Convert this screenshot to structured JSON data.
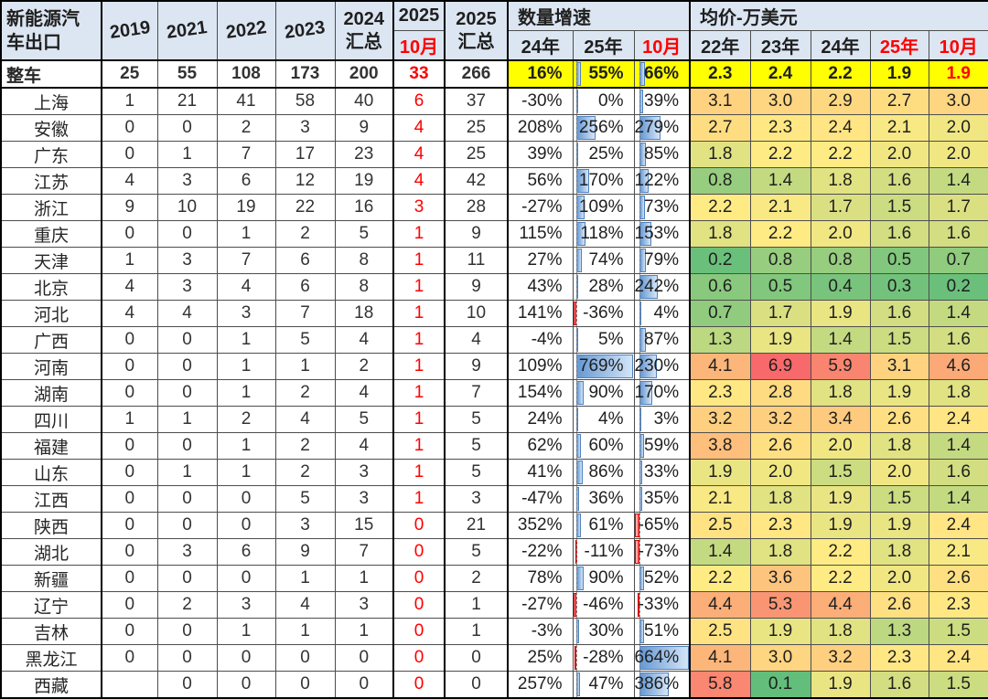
{
  "table": {
    "corner_title": "新能源汽\n车出口",
    "col_headers": {
      "y2019": "2019",
      "y2021": "2021",
      "y2022": "2022",
      "y2023": "2023",
      "y2024_total": "2024\n汇总",
      "y2025_top": "2025",
      "y2025_m10": "10月",
      "y2025_total": "2025\n汇总"
    },
    "groups": {
      "growth": {
        "label": "数量增速",
        "sub": [
          "24年",
          "25年",
          "10月"
        ]
      },
      "price": {
        "label": "均价-万美元",
        "sub": [
          "22年",
          "23年",
          "24年",
          "25年",
          "10月"
        ]
      }
    },
    "rows": [
      {
        "name": "整车",
        "total": true,
        "qty": [
          "25",
          "55",
          "108",
          "173",
          "200",
          "33",
          "266"
        ],
        "growth": [
          16,
          55,
          66
        ],
        "price": [
          2.3,
          2.4,
          2.2,
          1.9,
          1.9
        ]
      },
      {
        "name": "上海",
        "qty": [
          "1",
          "21",
          "41",
          "58",
          "40",
          "6",
          "37"
        ],
        "growth": [
          -30,
          0,
          39
        ],
        "price": [
          3.1,
          3.0,
          2.9,
          2.7,
          3.0
        ]
      },
      {
        "name": "安徽",
        "qty": [
          "0",
          "0",
          "2",
          "3",
          "9",
          "4",
          "25"
        ],
        "growth": [
          208,
          256,
          279
        ],
        "price": [
          2.7,
          2.3,
          2.4,
          2.1,
          2.0
        ]
      },
      {
        "name": "广东",
        "qty": [
          "0",
          "1",
          "7",
          "17",
          "23",
          "4",
          "25"
        ],
        "growth": [
          39,
          25,
          85
        ],
        "price": [
          1.8,
          2.2,
          2.2,
          2.0,
          2.0
        ]
      },
      {
        "name": "江苏",
        "qty": [
          "4",
          "3",
          "6",
          "12",
          "19",
          "4",
          "42"
        ],
        "growth": [
          56,
          170,
          122
        ],
        "price": [
          0.8,
          1.4,
          1.8,
          1.6,
          1.4
        ]
      },
      {
        "name": "浙江",
        "qty": [
          "9",
          "10",
          "19",
          "22",
          "16",
          "3",
          "28"
        ],
        "growth": [
          -27,
          109,
          73
        ],
        "price": [
          2.2,
          2.1,
          1.7,
          1.5,
          1.7
        ]
      },
      {
        "name": "重庆",
        "qty": [
          "0",
          "0",
          "1",
          "2",
          "5",
          "1",
          "9"
        ],
        "growth": [
          115,
          118,
          153
        ],
        "price": [
          1.8,
          2.2,
          2.0,
          1.6,
          1.6
        ]
      },
      {
        "name": "天津",
        "qty": [
          "1",
          "3",
          "7",
          "6",
          "8",
          "1",
          "11"
        ],
        "growth": [
          27,
          74,
          79
        ],
        "price": [
          0.2,
          0.8,
          0.8,
          0.5,
          0.7
        ]
      },
      {
        "name": "北京",
        "qty": [
          "4",
          "3",
          "4",
          "6",
          "8",
          "1",
          "9"
        ],
        "growth": [
          43,
          28,
          242
        ],
        "price": [
          0.6,
          0.5,
          0.4,
          0.3,
          0.2
        ]
      },
      {
        "name": "河北",
        "qty": [
          "4",
          "4",
          "3",
          "7",
          "18",
          "1",
          "10"
        ],
        "growth": [
          141,
          -36,
          4
        ],
        "price": [
          0.7,
          1.7,
          1.9,
          1.6,
          1.4
        ]
      },
      {
        "name": "广西",
        "qty": [
          "0",
          "0",
          "1",
          "5",
          "4",
          "1",
          "4"
        ],
        "growth": [
          -4,
          5,
          87
        ],
        "price": [
          1.3,
          1.9,
          1.4,
          1.5,
          1.6
        ]
      },
      {
        "name": "河南",
        "qty": [
          "0",
          "0",
          "1",
          "1",
          "2",
          "1",
          "9"
        ],
        "growth": [
          109,
          769,
          230
        ],
        "price": [
          4.1,
          6.9,
          5.9,
          3.1,
          4.6
        ]
      },
      {
        "name": "湖南",
        "qty": [
          "0",
          "0",
          "1",
          "2",
          "4",
          "1",
          "7"
        ],
        "growth": [
          154,
          90,
          170
        ],
        "price": [
          2.3,
          2.8,
          1.8,
          1.9,
          1.8
        ]
      },
      {
        "name": "四川",
        "qty": [
          "1",
          "1",
          "2",
          "4",
          "5",
          "1",
          "5"
        ],
        "growth": [
          24,
          4,
          3
        ],
        "price": [
          3.2,
          3.2,
          3.4,
          2.6,
          2.4
        ]
      },
      {
        "name": "福建",
        "qty": [
          "0",
          "0",
          "1",
          "2",
          "4",
          "1",
          "5"
        ],
        "growth": [
          62,
          60,
          59
        ],
        "price": [
          3.8,
          2.6,
          2.0,
          1.8,
          1.4
        ]
      },
      {
        "name": "山东",
        "qty": [
          "0",
          "1",
          "1",
          "2",
          "3",
          "1",
          "5"
        ],
        "growth": [
          41,
          86,
          33
        ],
        "price": [
          1.9,
          2.0,
          1.5,
          2.0,
          1.6
        ]
      },
      {
        "name": "江西",
        "qty": [
          "0",
          "0",
          "0",
          "5",
          "3",
          "1",
          "3"
        ],
        "growth": [
          -47,
          36,
          35
        ],
        "price": [
          2.1,
          1.8,
          1.9,
          1.5,
          1.4
        ]
      },
      {
        "name": "陕西",
        "qty": [
          "0",
          "0",
          "0",
          "3",
          "15",
          "0",
          "21"
        ],
        "growth": [
          352,
          61,
          -65
        ],
        "price": [
          2.5,
          2.3,
          1.9,
          1.9,
          2.4
        ]
      },
      {
        "name": "湖北",
        "qty": [
          "0",
          "3",
          "6",
          "9",
          "7",
          "0",
          "5"
        ],
        "growth": [
          -22,
          -11,
          -73
        ],
        "price": [
          1.4,
          1.8,
          2.2,
          1.8,
          2.1
        ]
      },
      {
        "name": "新疆",
        "qty": [
          "0",
          "0",
          "0",
          "1",
          "1",
          "0",
          "2"
        ],
        "growth": [
          78,
          90,
          52
        ],
        "price": [
          2.2,
          3.6,
          2.2,
          2.0,
          2.6
        ]
      },
      {
        "name": "辽宁",
        "qty": [
          "0",
          "2",
          "3",
          "4",
          "3",
          "0",
          "1"
        ],
        "growth": [
          -27,
          -46,
          -33
        ],
        "price": [
          4.4,
          5.3,
          4.4,
          2.6,
          2.3
        ]
      },
      {
        "name": "吉林",
        "qty": [
          "0",
          "0",
          "1",
          "1",
          "1",
          "0",
          "1"
        ],
        "growth": [
          -3,
          30,
          51
        ],
        "price": [
          2.5,
          1.9,
          1.8,
          1.3,
          1.5
        ]
      },
      {
        "name": "黑龙江",
        "qty": [
          "0",
          "0",
          "0",
          "0",
          "0",
          "0",
          "0"
        ],
        "growth": [
          25,
          -28,
          664
        ],
        "price": [
          4.1,
          3.0,
          3.2,
          2.3,
          2.4
        ]
      },
      {
        "name": "西藏",
        "qty": [
          "",
          "0",
          "0",
          "0",
          "0",
          "0",
          "0"
        ],
        "growth": [
          257,
          47,
          386
        ],
        "price": [
          5.8,
          0.1,
          1.9,
          1.6,
          1.5
        ]
      }
    ]
  },
  "colors": {
    "header_bg": "#dce6f2",
    "highlight_bg": "#ffff00",
    "red_text": "#ff0000",
    "grid_line": "#4d4d4d",
    "bar_positive_border": "#4f81bd",
    "bar_positive_fill": "#6699d4",
    "bar_positive_fill_light": "#d4e5f7",
    "bar_negative_border": "#d00000",
    "bar_negative_fill": "#ff5a5a",
    "bar_negative_fill_light": "#ffc5c5",
    "scale": {
      "min_value": 0.1,
      "mid_value": 2.2,
      "max_value": 6.9,
      "min_color": "#63be7b",
      "mid_color": "#ffeb84",
      "max_color": "#f8696b"
    }
  }
}
